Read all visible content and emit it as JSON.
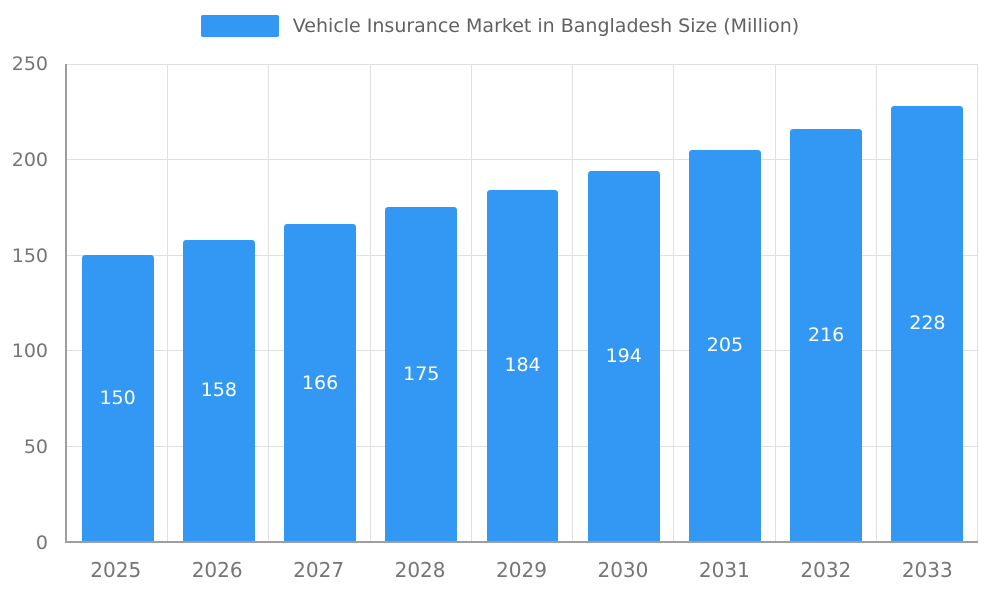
{
  "chart_data": {
    "type": "bar",
    "title": "Vehicle Insurance Market in Bangladesh Size (Million)",
    "categories": [
      "2025",
      "2026",
      "2027",
      "2028",
      "2029",
      "2030",
      "2031",
      "2032",
      "2033"
    ],
    "values": [
      150,
      158,
      166,
      175,
      184,
      194,
      205,
      216,
      228
    ],
    "series": [
      {
        "name": "Vehicle Insurance Market in Bangladesh Size (Million)",
        "values": [
          150,
          158,
          166,
          175,
          184,
          194,
          205,
          216,
          228
        ]
      }
    ],
    "xlabel": "",
    "ylabel": "",
    "ylim": [
      0,
      250
    ],
    "yticks": [
      0,
      50,
      100,
      150,
      200,
      250
    ],
    "grid": true,
    "legend_position": "top-center",
    "value_labels": "inside-center",
    "colors": {
      "bar": "#3398f3",
      "value_label": "#ffffff",
      "gridline": "#e0e0e0",
      "axis": "#9e9e9e",
      "tick_label": "#757575",
      "title": "#616161",
      "background": "#ffffff"
    }
  }
}
